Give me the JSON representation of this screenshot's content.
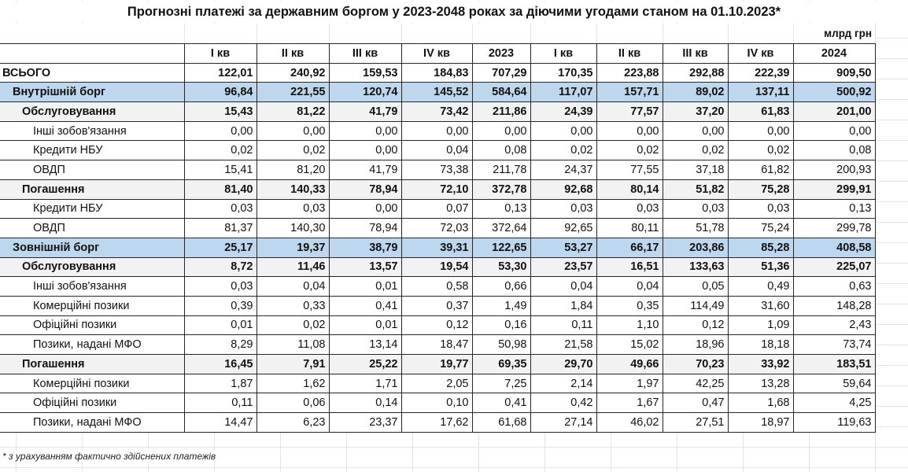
{
  "title": "Прогнозні платежі за державним боргом у 2023-2048 роках за діючими угодами станом на 01.10.2023*",
  "units": "млрд грн",
  "columns": [
    "",
    "I кв",
    "II кв",
    "III кв",
    "IV кв",
    "2023",
    "I кв",
    "II кв",
    "III кв",
    "IV кв",
    "2024"
  ],
  "rows": [
    {
      "level": 0,
      "label": "ВСЬОГО",
      "values": [
        "122,01",
        "240,92",
        "159,53",
        "184,83",
        "707,29",
        "170,35",
        "223,88",
        "292,88",
        "222,39",
        "909,50"
      ]
    },
    {
      "level": 1,
      "label": "Внутрішній борг",
      "values": [
        "96,84",
        "221,55",
        "120,74",
        "145,52",
        "584,64",
        "117,07",
        "157,71",
        "89,02",
        "137,11",
        "500,92"
      ]
    },
    {
      "level": 2,
      "label": "Обслуговування",
      "values": [
        "15,43",
        "81,22",
        "41,79",
        "73,42",
        "211,86",
        "24,39",
        "77,57",
        "37,20",
        "61,83",
        "201,00"
      ]
    },
    {
      "level": 3,
      "label": "Інші зобов'язання",
      "values": [
        "0,00",
        "0,00",
        "0,00",
        "0,00",
        "0,00",
        "0,00",
        "0,00",
        "0,00",
        "0,00",
        "0,00"
      ]
    },
    {
      "level": 3,
      "label": "Кредити НБУ",
      "values": [
        "0,02",
        "0,02",
        "0,00",
        "0,04",
        "0,08",
        "0,02",
        "0,02",
        "0,02",
        "0,02",
        "0,08"
      ]
    },
    {
      "level": 3,
      "label": "ОВДП",
      "values": [
        "15,41",
        "81,20",
        "41,79",
        "73,38",
        "211,78",
        "24,37",
        "77,55",
        "37,18",
        "61,82",
        "200,93"
      ]
    },
    {
      "level": 2,
      "label": "Погашення",
      "values": [
        "81,40",
        "140,33",
        "78,94",
        "72,10",
        "372,78",
        "92,68",
        "80,14",
        "51,82",
        "75,28",
        "299,91"
      ]
    },
    {
      "level": 3,
      "label": "Кредити НБУ",
      "values": [
        "0,03",
        "0,03",
        "0,00",
        "0,07",
        "0,13",
        "0,03",
        "0,03",
        "0,03",
        "0,03",
        "0,13"
      ]
    },
    {
      "level": 3,
      "label": "ОВДП",
      "values": [
        "81,37",
        "140,30",
        "78,94",
        "72,03",
        "372,64",
        "92,65",
        "80,11",
        "51,78",
        "75,24",
        "299,78"
      ]
    },
    {
      "level": 1,
      "label": "Зовнішній борг",
      "values": [
        "25,17",
        "19,37",
        "38,79",
        "39,31",
        "122,65",
        "53,27",
        "66,17",
        "203,86",
        "85,28",
        "408,58"
      ]
    },
    {
      "level": 2,
      "label": "Обслуговування",
      "values": [
        "8,72",
        "11,46",
        "13,57",
        "19,54",
        "53,30",
        "23,57",
        "16,51",
        "133,63",
        "51,36",
        "225,07"
      ]
    },
    {
      "level": 3,
      "label": "Інші зобов'язання",
      "values": [
        "0,03",
        "0,04",
        "0,01",
        "0,58",
        "0,66",
        "0,04",
        "0,04",
        "0,05",
        "0,49",
        "0,63"
      ]
    },
    {
      "level": 3,
      "label": "Комерційні позики",
      "values": [
        "0,39",
        "0,33",
        "0,41",
        "0,37",
        "1,49",
        "1,84",
        "0,35",
        "114,49",
        "31,60",
        "148,28"
      ]
    },
    {
      "level": 3,
      "label": "Офіційні позики",
      "values": [
        "0,01",
        "0,02",
        "0,01",
        "0,12",
        "0,16",
        "0,11",
        "1,10",
        "0,12",
        "1,09",
        "2,43"
      ]
    },
    {
      "level": 3,
      "label": "Позики, надані МФО",
      "values": [
        "8,29",
        "11,08",
        "13,14",
        "18,47",
        "50,98",
        "21,58",
        "15,02",
        "18,96",
        "18,18",
        "73,74"
      ]
    },
    {
      "level": 2,
      "label": "Погашення",
      "values": [
        "16,45",
        "7,91",
        "25,22",
        "19,77",
        "69,35",
        "29,70",
        "49,66",
        "70,23",
        "33,92",
        "183,51"
      ]
    },
    {
      "level": 3,
      "label": "Комерційні позики",
      "values": [
        "1,87",
        "1,62",
        "1,71",
        "2,05",
        "7,25",
        "2,14",
        "1,97",
        "42,25",
        "13,28",
        "59,64"
      ]
    },
    {
      "level": 3,
      "label": "Офіційні позики",
      "values": [
        "0,11",
        "0,06",
        "0,14",
        "0,10",
        "0,41",
        "0,42",
        "1,67",
        "0,47",
        "1,68",
        "4,25"
      ]
    },
    {
      "level": 3,
      "label": "Позики, надані МФО",
      "values": [
        "14,47",
        "6,23",
        "23,37",
        "17,62",
        "61,68",
        "27,14",
        "46,02",
        "27,51",
        "18,97",
        "119,63"
      ]
    }
  ],
  "footnote": "* з урахуванням фактично здійснених платежів",
  "colors": {
    "debt_category_row": "#bdd7ee",
    "subtotal_row": "#f2f2f2",
    "border": "#262626"
  }
}
